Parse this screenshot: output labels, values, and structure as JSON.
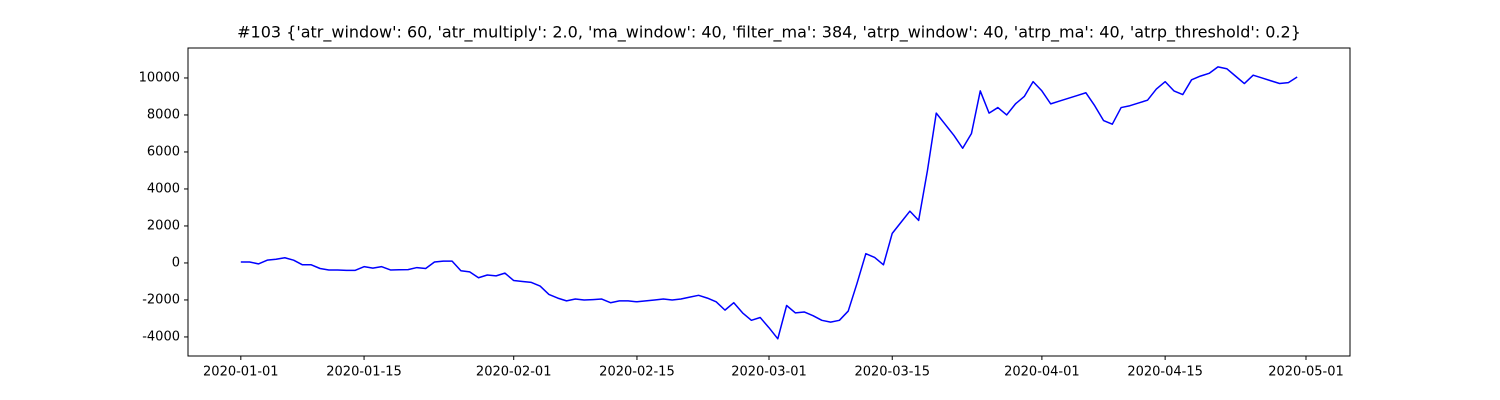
{
  "chart_data": {
    "type": "line",
    "title": "#103 {'atr_window': 60, 'atr_multiply': 2.0, 'ma_window': 40, 'filter_ma': 384, 'atrp_window': 40, 'atrp_ma': 40, 'atrp_threshold': 0.2}",
    "x": [
      "2020-01-01",
      "2020-01-02",
      "2020-01-03",
      "2020-01-04",
      "2020-01-05",
      "2020-01-06",
      "2020-01-07",
      "2020-01-08",
      "2020-01-09",
      "2020-01-10",
      "2020-01-11",
      "2020-01-12",
      "2020-01-13",
      "2020-01-14",
      "2020-01-15",
      "2020-01-16",
      "2020-01-17",
      "2020-01-18",
      "2020-01-19",
      "2020-01-20",
      "2020-01-21",
      "2020-01-22",
      "2020-01-23",
      "2020-01-24",
      "2020-01-25",
      "2020-01-26",
      "2020-01-27",
      "2020-01-28",
      "2020-01-29",
      "2020-01-30",
      "2020-01-31",
      "2020-02-01",
      "2020-02-02",
      "2020-02-03",
      "2020-02-04",
      "2020-02-05",
      "2020-02-06",
      "2020-02-07",
      "2020-02-08",
      "2020-02-09",
      "2020-02-10",
      "2020-02-11",
      "2020-02-12",
      "2020-02-13",
      "2020-02-14",
      "2020-02-15",
      "2020-02-16",
      "2020-02-17",
      "2020-02-18",
      "2020-02-19",
      "2020-02-20",
      "2020-02-21",
      "2020-02-22",
      "2020-02-23",
      "2020-02-24",
      "2020-02-25",
      "2020-02-26",
      "2020-02-27",
      "2020-02-28",
      "2020-02-29",
      "2020-03-01",
      "2020-03-02",
      "2020-03-03",
      "2020-03-04",
      "2020-03-05",
      "2020-03-06",
      "2020-03-07",
      "2020-03-08",
      "2020-03-09",
      "2020-03-10",
      "2020-03-11",
      "2020-03-12",
      "2020-03-13",
      "2020-03-14",
      "2020-03-15",
      "2020-03-16",
      "2020-03-17",
      "2020-03-18",
      "2020-03-19",
      "2020-03-20",
      "2020-03-21",
      "2020-03-22",
      "2020-03-23",
      "2020-03-24",
      "2020-03-25",
      "2020-03-26",
      "2020-03-27",
      "2020-03-28",
      "2020-03-29",
      "2020-03-30",
      "2020-03-31",
      "2020-04-01",
      "2020-04-02",
      "2020-04-03",
      "2020-04-04",
      "2020-04-05",
      "2020-04-06",
      "2020-04-07",
      "2020-04-08",
      "2020-04-09",
      "2020-04-10",
      "2020-04-11",
      "2020-04-12",
      "2020-04-13",
      "2020-04-14",
      "2020-04-15",
      "2020-04-16",
      "2020-04-17",
      "2020-04-18",
      "2020-04-19",
      "2020-04-20",
      "2020-04-21",
      "2020-04-22",
      "2020-04-23",
      "2020-04-24",
      "2020-04-25",
      "2020-04-26",
      "2020-04-27",
      "2020-04-28",
      "2020-04-29",
      "2020-04-30"
    ],
    "series": [
      {
        "color": "#0000ff",
        "values": [
          50,
          50,
          -50,
          150,
          200,
          280,
          150,
          -100,
          -100,
          -300,
          -380,
          -380,
          -400,
          -400,
          -200,
          -280,
          -200,
          -380,
          -370,
          -360,
          -250,
          -300,
          50,
          100,
          100,
          -420,
          -480,
          -800,
          -650,
          -700,
          -550,
          -950,
          -1000,
          -1050,
          -1250,
          -1700,
          -1900,
          -2050,
          -1950,
          -2000,
          -1980,
          -1950,
          -2150,
          -2050,
          -2050,
          -2100,
          -2050,
          -2000,
          -1950,
          -2000,
          -1950,
          -1850,
          -1750,
          -1900,
          -2100,
          -2550,
          -2150,
          -2700,
          -3100,
          -2950,
          -3500,
          -4100,
          -2300,
          -2700,
          -2650,
          -2850,
          -3100,
          -3200,
          -3100,
          -2600,
          -1100,
          500,
          300,
          -100,
          1600,
          2200,
          2800,
          2300,
          5000,
          8100,
          7500,
          6900,
          6200,
          7000,
          9300,
          8100,
          8400,
          8000,
          8600,
          9000,
          9800,
          9300,
          8600,
          8750,
          8900,
          9050,
          9200,
          8500,
          7700,
          7500,
          8400,
          8500,
          8650,
          8800,
          9400,
          9800,
          9300,
          9100,
          9900,
          10100,
          10250,
          10600,
          10500,
          10100,
          9700,
          10150,
          10000,
          9850,
          9700,
          9750,
          10050
        ]
      }
    ],
    "xlim": [
      "2019-12-26",
      "2020-05-06"
    ],
    "xticks": [
      "2020-01-01",
      "2020-01-15",
      "2020-02-01",
      "2020-02-15",
      "2020-03-01",
      "2020-03-15",
      "2020-04-01",
      "2020-04-15",
      "2020-05-01"
    ],
    "ylim": [
      -5030,
      11620
    ],
    "yticks": [
      -4000,
      -2000,
      0,
      2000,
      4000,
      6000,
      8000,
      10000
    ]
  }
}
